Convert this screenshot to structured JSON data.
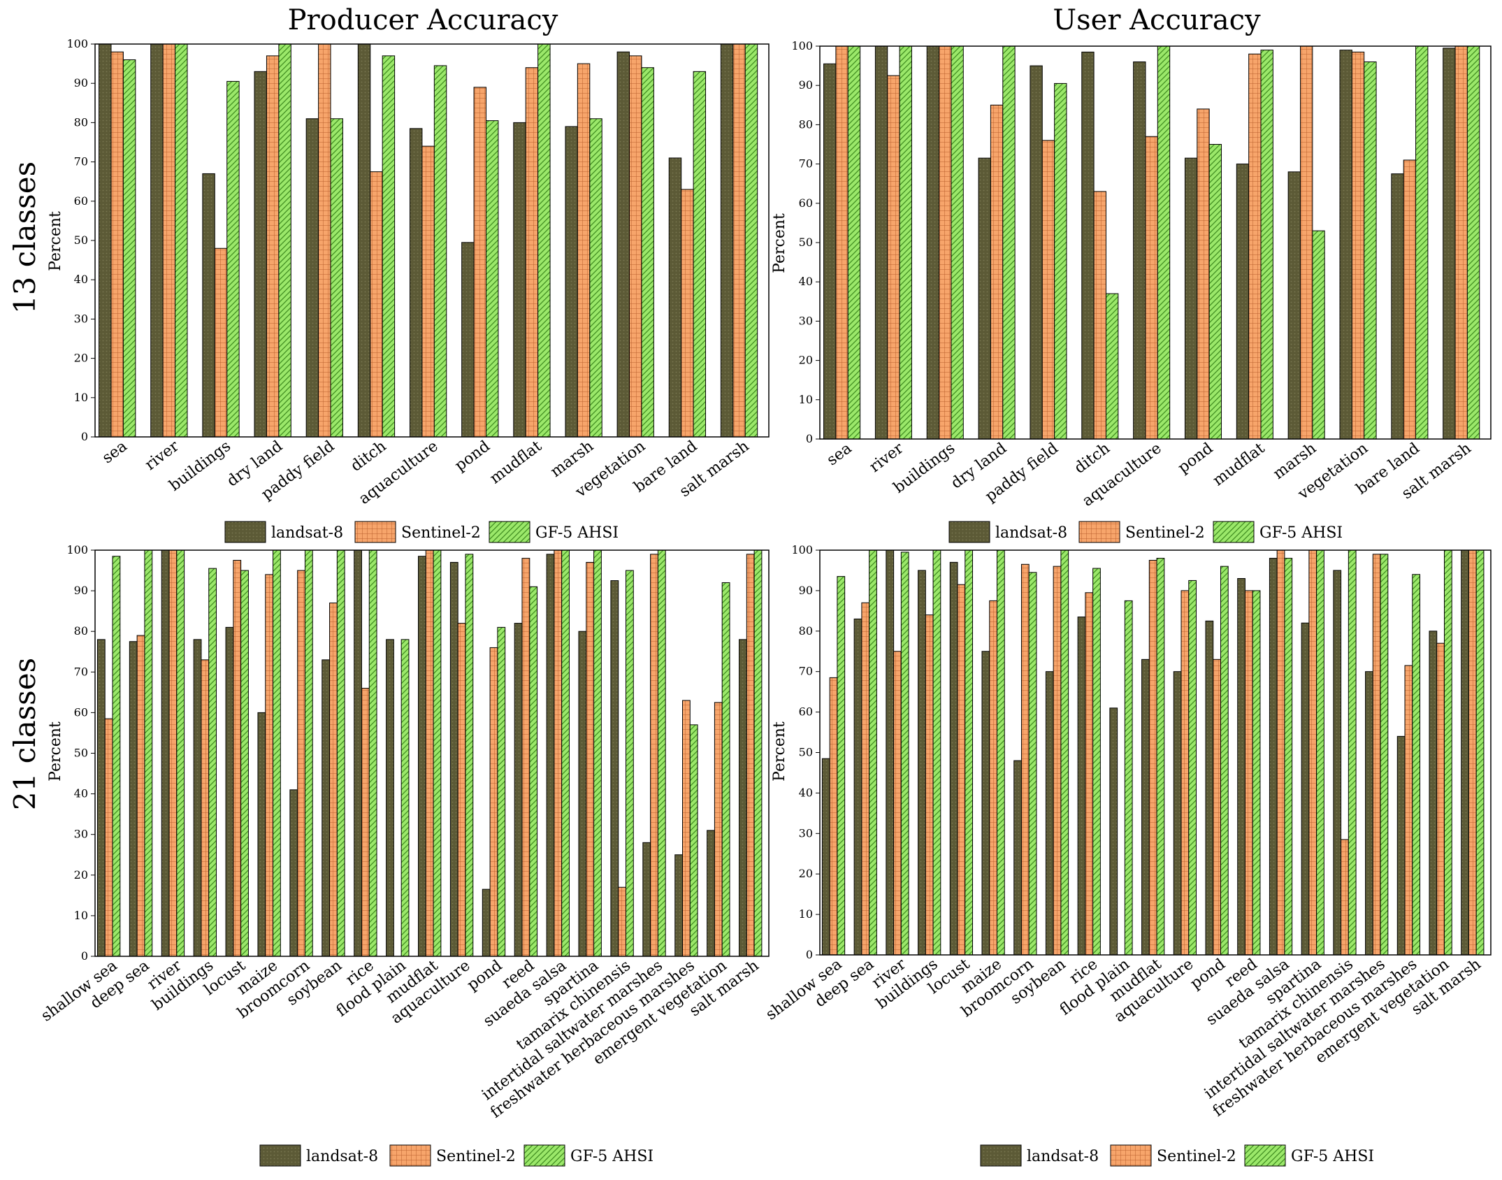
{
  "titles": {
    "left": "Producer Accuracy",
    "right": "User Accuracy"
  },
  "row_labels": {
    "top": "13 classes",
    "bottom": "21 classes"
  },
  "legend": [
    {
      "name": "landsat-8",
      "pattern": "dark"
    },
    {
      "name": "Sentinel-2",
      "pattern": "grid"
    },
    {
      "name": "GF-5 AHSI",
      "pattern": "hatch"
    }
  ],
  "colors": {
    "landsat_fill": "#5c5a36",
    "sentinel_fill": "#f7a56b",
    "sentinel_grid": "#b85e2c",
    "gf5_fill": "#9be86a",
    "gf5_hatch": "#3d8a1e",
    "axis": "#000000"
  },
  "chart_data": [
    {
      "id": "pa13",
      "type": "bar",
      "title": "Producer Accuracy",
      "ylabel": "Percent",
      "ylim": [
        0,
        100
      ],
      "yticks": [
        0,
        10,
        20,
        30,
        40,
        50,
        60,
        70,
        80,
        90,
        100
      ],
      "categories": [
        "sea",
        "river",
        "buildings",
        "dry land",
        "paddy field",
        "ditch",
        "aquaculture",
        "pond",
        "mudflat",
        "marsh",
        "vegetation",
        "bare land",
        "salt marsh"
      ],
      "series": [
        {
          "name": "landsat-8",
          "values": [
            100,
            100,
            67,
            93,
            81,
            100,
            78.5,
            49.5,
            80,
            79,
            98,
            71,
            100
          ]
        },
        {
          "name": "Sentinel-2",
          "values": [
            98,
            100,
            48,
            97,
            100,
            67.5,
            74,
            89,
            94,
            95,
            97,
            63,
            100
          ]
        },
        {
          "name": "GF-5 AHSI",
          "values": [
            96,
            100,
            90.5,
            100,
            81,
            97,
            94.5,
            80.5,
            100,
            81,
            94,
            93,
            100
          ]
        }
      ]
    },
    {
      "id": "ua13",
      "type": "bar",
      "title": "User Accuracy",
      "ylabel": "Percent",
      "ylim": [
        0,
        100
      ],
      "yticks": [
        0,
        10,
        20,
        30,
        40,
        50,
        60,
        70,
        80,
        90,
        100
      ],
      "categories": [
        "sea",
        "river",
        "buildings",
        "dry land",
        "paddy field",
        "ditch",
        "aquaculture",
        "pond",
        "mudflat",
        "marsh",
        "vegetation",
        "bare land",
        "salt marsh"
      ],
      "series": [
        {
          "name": "landsat-8",
          "values": [
            95.5,
            100,
            100,
            71.5,
            95,
            98.5,
            96,
            71.5,
            70,
            68,
            99,
            67.5,
            99.5
          ]
        },
        {
          "name": "Sentinel-2",
          "values": [
            100,
            92.5,
            100,
            85,
            76,
            63,
            77,
            84,
            98,
            100,
            98.5,
            71,
            100
          ]
        },
        {
          "name": "GF-5 AHSI",
          "values": [
            100,
            100,
            100,
            100,
            90.5,
            37,
            100,
            75,
            99,
            53,
            96,
            100,
            100
          ]
        }
      ]
    },
    {
      "id": "pa21",
      "type": "bar",
      "title": "Producer Accuracy",
      "ylabel": "Percent",
      "ylim": [
        0,
        100
      ],
      "yticks": [
        0,
        10,
        20,
        30,
        40,
        50,
        60,
        70,
        80,
        90,
        100
      ],
      "categories": [
        "shallow sea",
        "deep sea",
        "river",
        "buildings",
        "locust",
        "maize",
        "broomcorn",
        "soybean",
        "rice",
        "flood plain",
        "mudflat",
        "aquaculture",
        "pond",
        "reed",
        "suaeda salsa",
        "spartina",
        "tamarix chinensis",
        "intertidal saltwater marshes",
        "freshwater herbaceous marshes",
        "emergent vegetation",
        "salt marsh"
      ],
      "series": [
        {
          "name": "landsat-8",
          "values": [
            78,
            77.5,
            100,
            78,
            81,
            60,
            41,
            73,
            100,
            78,
            98.5,
            97,
            16.5,
            82,
            99,
            80,
            92.5,
            28,
            25,
            31,
            78
          ]
        },
        {
          "name": "Sentinel-2",
          "values": [
            58.5,
            79,
            100,
            73,
            97.5,
            94,
            95,
            87,
            66,
            0,
            100,
            82,
            76,
            98,
            100,
            97,
            17,
            99,
            63,
            62.5,
            99
          ]
        },
        {
          "name": "GF-5 AHSI",
          "values": [
            98.5,
            100,
            100,
            95.5,
            95,
            100,
            100,
            100,
            100,
            78,
            100,
            99,
            81,
            91,
            100,
            100,
            95,
            100,
            57,
            92,
            100
          ]
        }
      ]
    },
    {
      "id": "ua21",
      "type": "bar",
      "title": "User Accuracy",
      "ylabel": "Percent",
      "ylim": [
        0,
        100
      ],
      "yticks": [
        0,
        10,
        20,
        30,
        40,
        50,
        60,
        70,
        80,
        90,
        100
      ],
      "categories": [
        "shallow sea",
        "deep sea",
        "river",
        "buildings",
        "locust",
        "maize",
        "broomcorn",
        "soybean",
        "rice",
        "flood plain",
        "mudflat",
        "aquaculture",
        "pond",
        "reed",
        "suaeda salsa",
        "spartina",
        "tamarix chinensis",
        "intertidal saltwater marshes",
        "freshwater herbaceous marshes",
        "emergent vegetation",
        "salt marsh"
      ],
      "series": [
        {
          "name": "landsat-8",
          "values": [
            48.5,
            83,
            100,
            95,
            97,
            75,
            48,
            70,
            83.5,
            61,
            73,
            70,
            82.5,
            93,
            98,
            82,
            95,
            70,
            54,
            80,
            100
          ]
        },
        {
          "name": "Sentinel-2",
          "values": [
            68.5,
            87,
            75,
            84,
            91.5,
            87.5,
            96.5,
            96,
            89.5,
            0,
            97.5,
            90,
            73,
            90,
            100,
            100,
            28.5,
            99,
            71.5,
            77,
            100
          ]
        },
        {
          "name": "GF-5 AHSI",
          "values": [
            93.5,
            100,
            99.5,
            100,
            100,
            100,
            94.5,
            100,
            95.5,
            87.5,
            98,
            92.5,
            96,
            90,
            98,
            100,
            100,
            99,
            94,
            100,
            100
          ]
        }
      ]
    }
  ]
}
